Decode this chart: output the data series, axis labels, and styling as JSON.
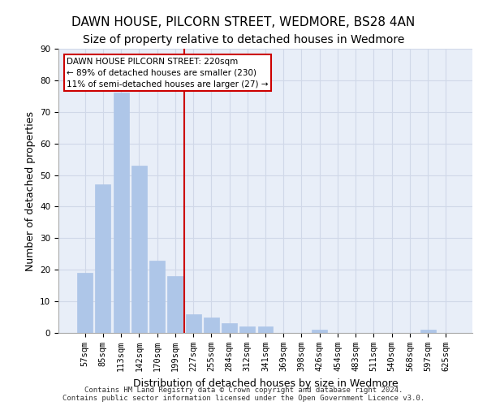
{
  "title1": "DAWN HOUSE, PILCORN STREET, WEDMORE, BS28 4AN",
  "title2": "Size of property relative to detached houses in Wedmore",
  "xlabel": "Distribution of detached houses by size in Wedmore",
  "ylabel": "Number of detached properties",
  "categories": [
    "57sqm",
    "85sqm",
    "113sqm",
    "142sqm",
    "170sqm",
    "199sqm",
    "227sqm",
    "255sqm",
    "284sqm",
    "312sqm",
    "341sqm",
    "369sqm",
    "398sqm",
    "426sqm",
    "454sqm",
    "483sqm",
    "511sqm",
    "540sqm",
    "568sqm",
    "597sqm",
    "625sqm"
  ],
  "values": [
    19,
    47,
    76,
    53,
    23,
    18,
    6,
    5,
    3,
    2,
    2,
    0,
    0,
    1,
    0,
    0,
    0,
    0,
    0,
    1,
    0
  ],
  "bar_color": "#aec6e8",
  "bar_edgecolor": "#aec6e8",
  "vline_x": 6,
  "vline_color": "#cc0000",
  "annotation_text": "DAWN HOUSE PILCORN STREET: 220sqm\n← 89% of detached houses are smaller (230)\n11% of semi-detached houses are larger (27) →",
  "annotation_box_color": "#ffffff",
  "annotation_box_edgecolor": "#cc0000",
  "ylim": [
    0,
    90
  ],
  "yticks": [
    0,
    10,
    20,
    30,
    40,
    50,
    60,
    70,
    80,
    90
  ],
  "grid_color": "#d0d8e8",
  "bg_color": "#e8eef8",
  "footer": "Contains HM Land Registry data © Crown copyright and database right 2024.\nContains public sector information licensed under the Open Government Licence v3.0.",
  "title_fontsize": 11,
  "subtitle_fontsize": 10,
  "tick_fontsize": 7.5,
  "ylabel_fontsize": 9,
  "xlabel_fontsize": 9
}
